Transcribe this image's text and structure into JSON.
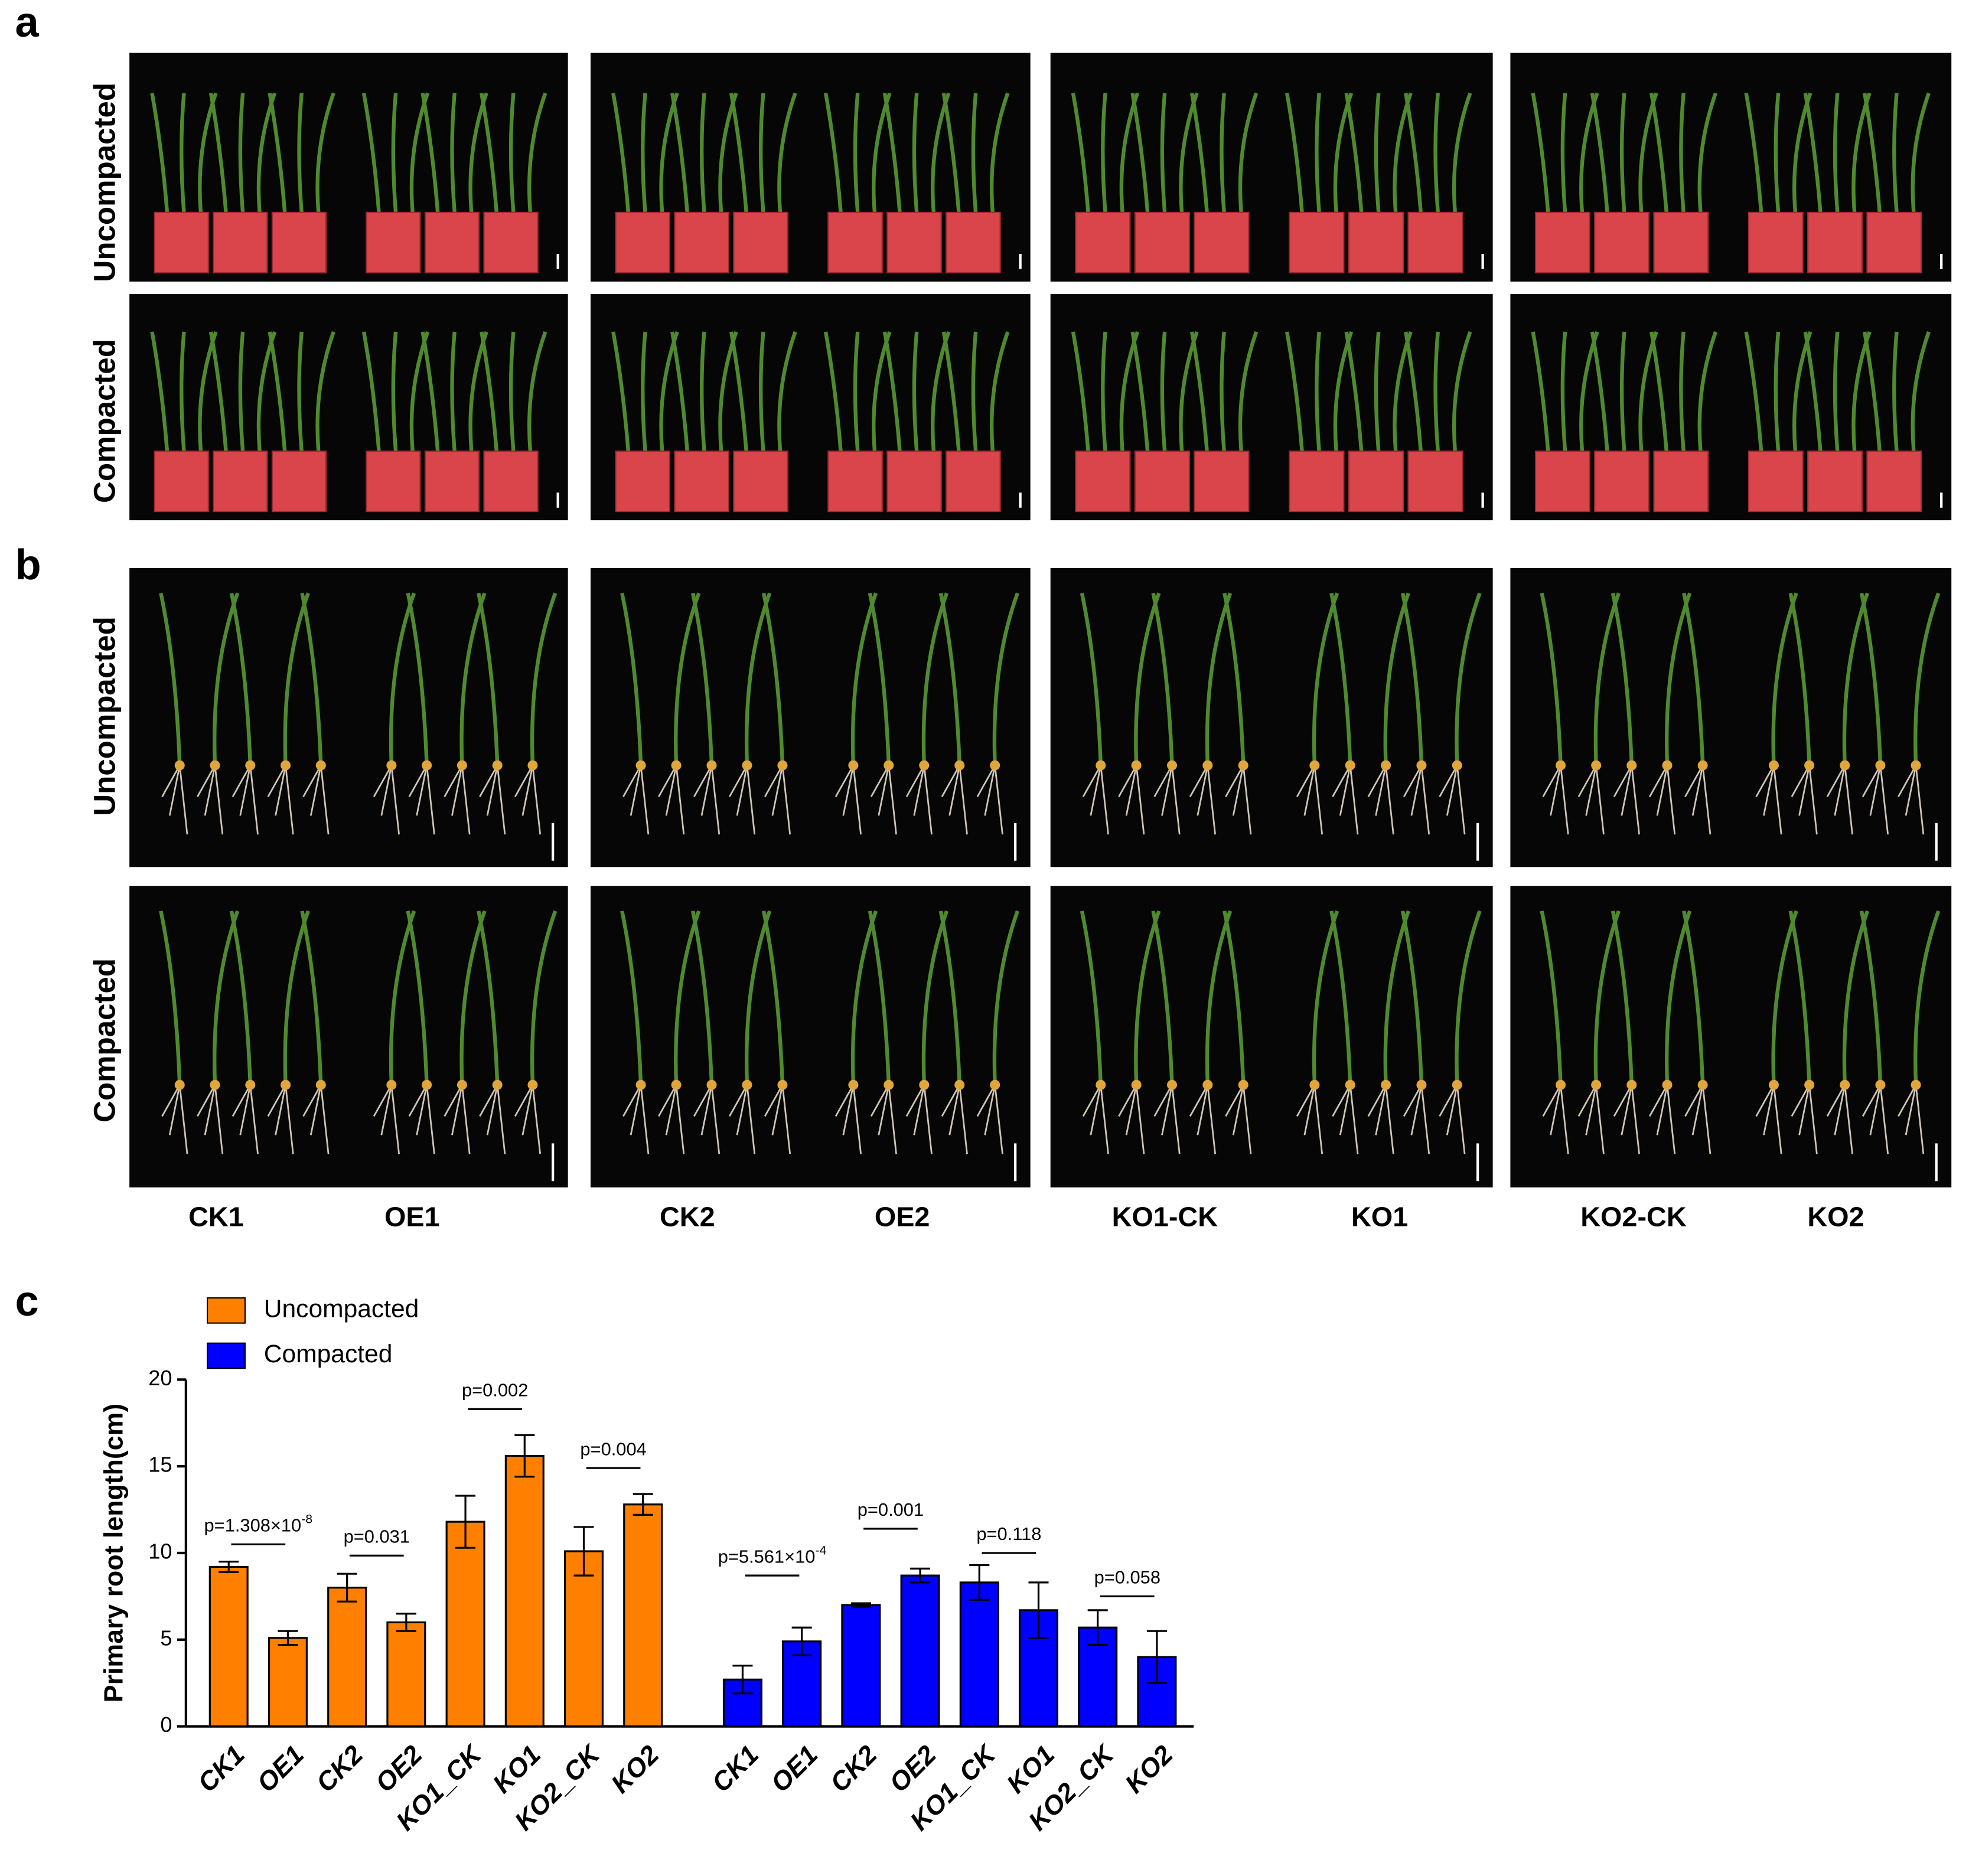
{
  "panel_labels": [
    "a",
    "b",
    "c"
  ],
  "row_labels": [
    "Uncompacted",
    "Compacted"
  ],
  "genotypes": [
    "CK1",
    "OE1",
    "CK2",
    "OE2",
    "KO1-CK",
    "KO1",
    "KO2-CK",
    "KO2"
  ],
  "chart_data": {
    "type": "bar",
    "ylabel": "Primary root length(cm)",
    "ylim": [
      0,
      20
    ],
    "yticks": [
      0,
      5,
      10,
      15,
      20
    ],
    "categories": [
      "CK1",
      "OE1",
      "CK2",
      "OE2",
      "KO1_CK",
      "KO1",
      "KO2_CK",
      "KO2",
      "CK1",
      "OE1",
      "CK2",
      "OE2",
      "KO1_CK",
      "KO1",
      "KO2_CK",
      "KO2"
    ],
    "series": [
      {
        "name": "Uncompacted",
        "color": "#ff8000",
        "values": [
          9.2,
          5.1,
          8.0,
          6.0,
          11.8,
          15.6,
          10.1,
          12.8,
          null,
          null,
          null,
          null,
          null,
          null,
          null,
          null
        ],
        "errors": [
          0.3,
          0.4,
          0.8,
          0.5,
          1.5,
          1.2,
          1.4,
          0.6,
          null,
          null,
          null,
          null,
          null,
          null,
          null,
          null
        ]
      },
      {
        "name": "Compacted",
        "color": "#0000ff",
        "values": [
          null,
          null,
          null,
          null,
          null,
          null,
          null,
          null,
          2.7,
          4.9,
          7.0,
          8.7,
          8.3,
          6.7,
          5.7,
          4.0
        ],
        "errors": [
          null,
          null,
          null,
          null,
          null,
          null,
          null,
          null,
          0.8,
          0.8,
          0.1,
          0.4,
          1.0,
          1.6,
          1.0,
          1.5
        ]
      }
    ],
    "annotations": [
      {
        "text": "p=1.308×10",
        "sup": "-8",
        "from": 0,
        "to": 1,
        "y": 10.5
      },
      {
        "text": "p=0.031",
        "from": 2,
        "to": 3,
        "y": 9.85
      },
      {
        "text": "p=0.002",
        "from": 4,
        "to": 5,
        "y": 18.3
      },
      {
        "text": "p=0.004",
        "from": 6,
        "to": 7,
        "y": 14.9
      },
      {
        "text": "p=5.561×10",
        "sup": "-4",
        "from": 8,
        "to": 9,
        "y": 8.7
      },
      {
        "text": "p=0.001",
        "from": 10,
        "to": 11,
        "y": 11.4
      },
      {
        "text": "p=0.118",
        "from": 12,
        "to": 13,
        "y": 10.0
      },
      {
        "text": "p=0.058",
        "from": 14,
        "to": 15,
        "y": 7.5
      }
    ]
  }
}
